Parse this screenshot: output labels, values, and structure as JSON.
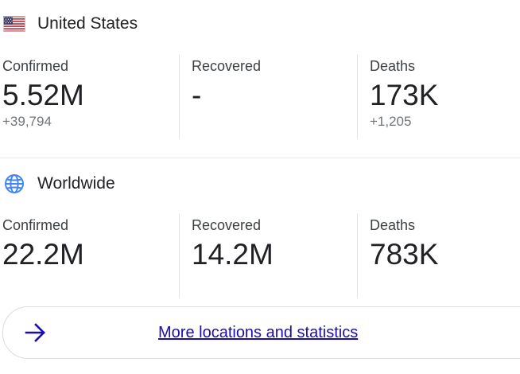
{
  "locations": {
    "us": {
      "name": "United States",
      "icon": "us-flag-icon",
      "stats": [
        {
          "label": "Confirmed",
          "value": "5.52M",
          "delta": "+39,794"
        },
        {
          "label": "Recovered",
          "value": "-",
          "delta": ""
        },
        {
          "label": "Deaths",
          "value": "173K",
          "delta": "+1,205"
        }
      ]
    },
    "world": {
      "name": "Worldwide",
      "icon": "globe-icon",
      "stats": [
        {
          "label": "Confirmed",
          "value": "22.2M"
        },
        {
          "label": "Recovered",
          "value": "14.2M"
        },
        {
          "label": "Deaths",
          "value": "783K"
        }
      ]
    }
  },
  "more_button": {
    "label": "More locations and statistics",
    "icon": "arrow-right-icon"
  },
  "colors": {
    "link": "#1a0dab",
    "text": "#202124",
    "muted": "#70757a",
    "globe": "#4285f4",
    "flag_red": "#b22234",
    "flag_blue": "#3c3b6e"
  }
}
